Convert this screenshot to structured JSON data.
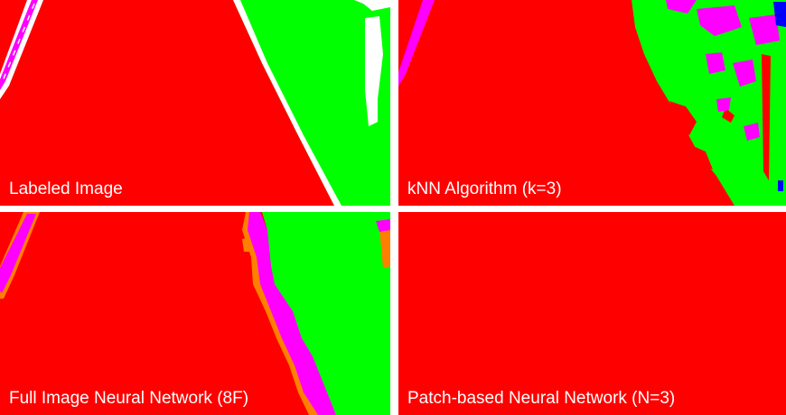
{
  "figure": {
    "panels": [
      {
        "id": "labeled",
        "caption": "Labeled Image"
      },
      {
        "id": "knn",
        "caption": "kNN Algorithm (k=3)"
      },
      {
        "id": "full",
        "caption": "Full Image Neural Network (8F)"
      },
      {
        "id": "patch",
        "caption": "Patch-based Neural Network (N=3)"
      }
    ],
    "colors": {
      "road": "#ff0000",
      "vegetation": "#00ff00",
      "marking": "#ff00ff",
      "edge": "#ff8000",
      "unlabeled": "#ffffff",
      "other": "#0000ff"
    }
  }
}
